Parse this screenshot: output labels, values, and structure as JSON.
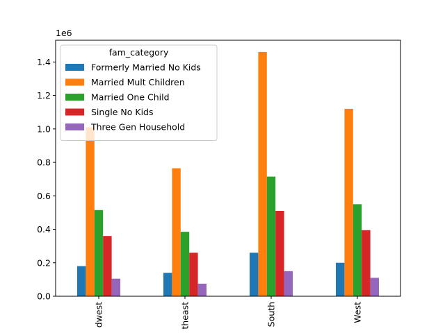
{
  "chart_data": {
    "type": "bar",
    "categories": [
      "Midwest",
      "Northeast",
      "South",
      "West"
    ],
    "category_labels_visible": [
      "dwest",
      "theast",
      "South",
      "West"
    ],
    "series": [
      {
        "name": "Formerly Married No Kids",
        "color": "#1f77b4",
        "values": [
          180000,
          140000,
          260000,
          200000
        ]
      },
      {
        "name": "Married Mult Children",
        "color": "#ff7f0e",
        "values": [
          1010000,
          765000,
          1460000,
          1120000
        ]
      },
      {
        "name": "Married One Child",
        "color": "#2ca02c",
        "values": [
          515000,
          385000,
          715000,
          550000
        ]
      },
      {
        "name": "Single No Kids",
        "color": "#d62728",
        "values": [
          360000,
          260000,
          510000,
          395000
        ]
      },
      {
        "name": "Three Gen Household",
        "color": "#9467bd",
        "values": [
          105000,
          75000,
          150000,
          110000
        ]
      }
    ],
    "legend_title": "fam_category",
    "legend_position": "upper-left",
    "y_offset_label": "1e6",
    "ylim": [
      0,
      1530000
    ],
    "yticks": [
      0,
      200000,
      400000,
      600000,
      800000,
      1000000,
      1200000,
      1400000
    ],
    "ytick_labels": [
      "0.0",
      "0.2",
      "0.4",
      "0.6",
      "0.8",
      "1.0",
      "1.2",
      "1.4"
    ],
    "grid": false
  }
}
